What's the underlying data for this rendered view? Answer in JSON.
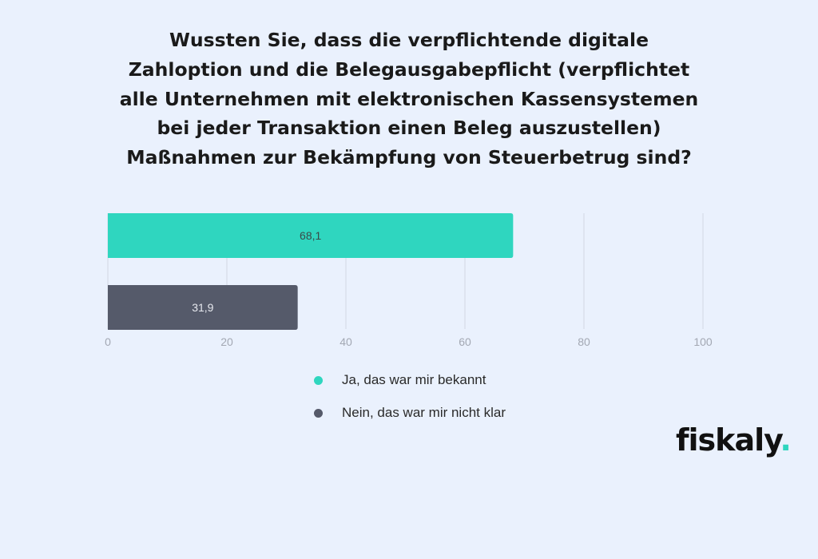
{
  "chart_data": {
    "type": "bar",
    "orientation": "horizontal",
    "title_lines": [
      "Wussten Sie, dass die verpflichtende digitale",
      "Zahloption und die Belegausgabepflicht (verpflichtet",
      "alle Unternehmen mit elektronischen Kassensystemen",
      "bei jeder Transaktion einen Beleg auszustellen)",
      "Maßnahmen zur Bekämpfung von Steuerbetrug sind?"
    ],
    "series": [
      {
        "name": "Ja, das war mir bekannt",
        "value": 68.1,
        "label": "68,1",
        "color": "#2fd6bf"
      },
      {
        "name": "Nein, das war mir nicht klar",
        "value": 31.9,
        "label": "31,9",
        "color": "#555a6a"
      }
    ],
    "xlim": [
      0,
      100
    ],
    "xticks": [
      0,
      20,
      40,
      60,
      80,
      100
    ],
    "xtick_labels": [
      "0",
      "20",
      "40",
      "60",
      "80",
      "100"
    ],
    "grid": true,
    "legend_position": "bottom"
  },
  "logo": {
    "text": "fiskaly",
    "dot": "."
  }
}
